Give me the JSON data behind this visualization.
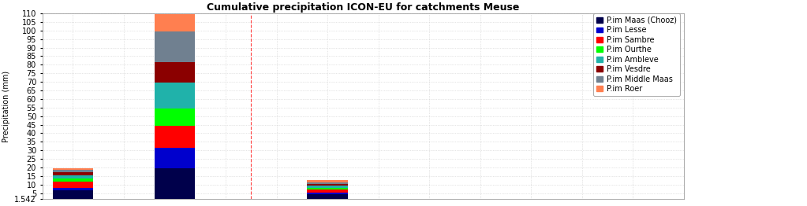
{
  "title": "Cumulative precipitation ICON-EU for catchments Meuse",
  "ylabel": "Precipitation (mm)",
  "ylim_min": 1.542,
  "ylim_max": 110,
  "ytick_step": 5,
  "ytick_min_label": 1.542,
  "bar_positions": [
    0,
    2,
    5
  ],
  "bar_width": 0.8,
  "xlim": [
    -0.6,
    12.0
  ],
  "x_grid_positions": [
    0,
    1,
    2,
    3,
    4,
    5,
    6,
    7,
    8,
    9,
    10,
    11,
    12
  ],
  "vline_x": 3.5,
  "vline_color": "#FF4444",
  "grid_color": "#CCCCCC",
  "bg_color": "#FFFFFF",
  "title_fontsize": 9,
  "axis_fontsize": 7,
  "legend_fontsize": 7,
  "series": [
    {
      "label": "P.im Maas (Chooz)",
      "color": "#00004B",
      "values": [
        5.0,
        18.0,
        3.0
      ]
    },
    {
      "label": "P.im Lesse",
      "color": "#0000CD",
      "values": [
        1.5,
        12.0,
        1.0
      ]
    },
    {
      "label": "P.im Sambre",
      "color": "#FF0000",
      "values": [
        3.5,
        13.0,
        1.5
      ]
    },
    {
      "label": "P.im Ourthe",
      "color": "#00FF00",
      "values": [
        2.0,
        10.0,
        1.2
      ]
    },
    {
      "label": "P.im Ambleve",
      "color": "#20B2AA",
      "values": [
        2.0,
        15.0,
        1.2
      ]
    },
    {
      "label": "P.im Vesdre",
      "color": "#8B0000",
      "values": [
        1.5,
        12.0,
        1.0
      ]
    },
    {
      "label": "P.im Middle Maas",
      "color": "#708090",
      "values": [
        1.5,
        18.0,
        1.0
      ]
    },
    {
      "label": "P.im Roer",
      "color": "#FF7F50",
      "values": [
        1.0,
        10.0,
        1.0
      ]
    }
  ]
}
